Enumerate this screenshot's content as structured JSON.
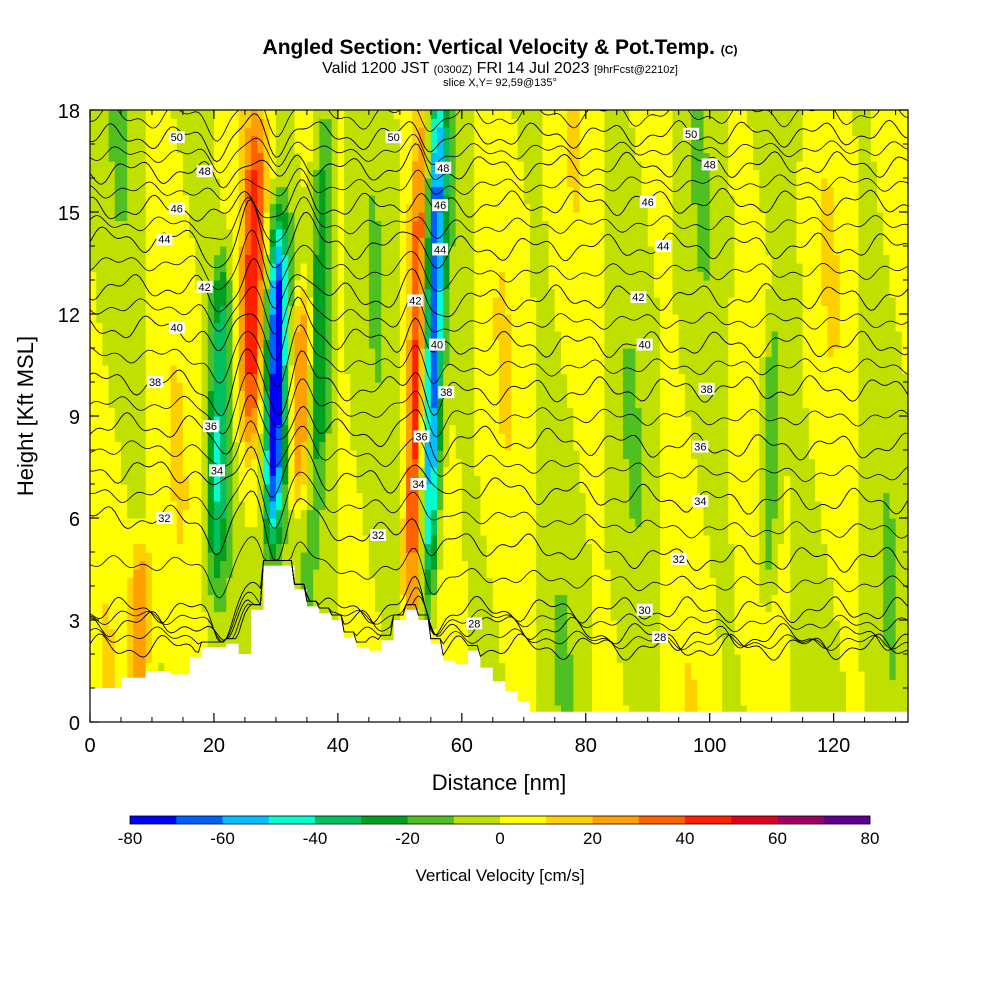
{
  "title": {
    "main": "Angled Section: Vertical Velocity & Pot.Temp.",
    "copyright": "(C)",
    "valid_prefix": "Valid 1200 JST",
    "valid_utc": "(0300Z)",
    "valid_date": "FRI 14 Jul 2023",
    "forecast": "[9hrFcst@2210z]",
    "slice": "slice X,Y= 92,59@135°"
  },
  "chart_data": {
    "type": "heatmap",
    "xlabel": "Distance [nm]",
    "ylabel": "Height [Kft MSL]",
    "xlim": [
      0,
      132
    ],
    "ylim": [
      0,
      18
    ],
    "x_ticks": [
      0,
      20,
      40,
      60,
      80,
      100,
      120
    ],
    "y_ticks": [
      0,
      3,
      6,
      9,
      12,
      15,
      18
    ],
    "colorbar": {
      "label": "Vertical Velocity [cm/s]",
      "tick_labels": [
        "-80",
        "-60",
        "-40",
        "-20",
        "0",
        "20",
        "40",
        "60",
        "80"
      ],
      "range": [
        -80,
        80
      ],
      "step": 10,
      "colors": [
        "#0000ff",
        "#0060ff",
        "#00c0ff",
        "#00ffd0",
        "#00c060",
        "#00a020",
        "#50c020",
        "#c0e000",
        "#ffff00",
        "#ffd000",
        "#ffa000",
        "#ff6000",
        "#ff2000",
        "#e00020",
        "#a00060",
        "#600090"
      ]
    },
    "background_value_range": [
      -10,
      10
    ],
    "features": [
      {
        "kind": "updraft",
        "x": 9,
        "z_range": [
          1.5,
          4.5
        ],
        "peak": 30
      },
      {
        "kind": "downdraft",
        "x": 21,
        "z_range": [
          5,
          13
        ],
        "peak": -40
      },
      {
        "kind": "updraft",
        "x": 26,
        "z_range": [
          9,
          17
        ],
        "peak": 40
      },
      {
        "kind": "downdraft",
        "x": 30,
        "z_range": [
          6,
          14
        ],
        "peak": -80
      },
      {
        "kind": "updraft",
        "x": 34,
        "z_range": [
          7,
          12
        ],
        "peak": 40
      },
      {
        "kind": "downdraft",
        "x": 37,
        "z_range": [
          8,
          18
        ],
        "peak": -30
      },
      {
        "kind": "updraft",
        "x": 53,
        "z_range": [
          3,
          18
        ],
        "peak": 50
      },
      {
        "kind": "downdraft",
        "x": 55,
        "z_range": [
          4,
          18
        ],
        "peak": -80
      },
      {
        "kind": "downdraft",
        "x": 110,
        "z_range": [
          4,
          11
        ],
        "peak": -25
      }
    ],
    "contour_labels": [
      {
        "x": 14,
        "z": 17.2,
        "text": "50"
      },
      {
        "x": 49,
        "z": 17.2,
        "text": "50"
      },
      {
        "x": 97,
        "z": 17.3,
        "text": "50"
      },
      {
        "x": 18.5,
        "z": 16.2,
        "text": "48"
      },
      {
        "x": 57,
        "z": 16.3,
        "text": "48"
      },
      {
        "x": 100,
        "z": 16.4,
        "text": "48"
      },
      {
        "x": 14,
        "z": 15.1,
        "text": "46"
      },
      {
        "x": 56.5,
        "z": 15.2,
        "text": "46"
      },
      {
        "x": 90,
        "z": 15.3,
        "text": "46"
      },
      {
        "x": 12,
        "z": 14.2,
        "text": "44"
      },
      {
        "x": 56.5,
        "z": 13.9,
        "text": "44"
      },
      {
        "x": 92.5,
        "z": 14.0,
        "text": "44"
      },
      {
        "x": 18.5,
        "z": 12.8,
        "text": "42"
      },
      {
        "x": 52.5,
        "z": 12.4,
        "text": "42"
      },
      {
        "x": 88.5,
        "z": 12.5,
        "text": "42"
      },
      {
        "x": 14,
        "z": 11.6,
        "text": "40"
      },
      {
        "x": 56,
        "z": 11.1,
        "text": "40"
      },
      {
        "x": 89.5,
        "z": 11.1,
        "text": "40"
      },
      {
        "x": 10.5,
        "z": 10.0,
        "text": "38"
      },
      {
        "x": 57.5,
        "z": 9.7,
        "text": "38"
      },
      {
        "x": 99.5,
        "z": 9.8,
        "text": "38"
      },
      {
        "x": 19.5,
        "z": 8.7,
        "text": "36"
      },
      {
        "x": 53.5,
        "z": 8.4,
        "text": "36"
      },
      {
        "x": 98.5,
        "z": 8.1,
        "text": "36"
      },
      {
        "x": 20.5,
        "z": 7.4,
        "text": "34"
      },
      {
        "x": 53,
        "z": 7.0,
        "text": "34"
      },
      {
        "x": 98.5,
        "z": 6.5,
        "text": "34"
      },
      {
        "x": 12,
        "z": 6.0,
        "text": "32"
      },
      {
        "x": 46.5,
        "z": 5.5,
        "text": "32"
      },
      {
        "x": 95,
        "z": 4.8,
        "text": "32"
      },
      {
        "x": 89.5,
        "z": 3.3,
        "text": "30"
      },
      {
        "x": 62,
        "z": 2.9,
        "text": "28"
      },
      {
        "x": 92,
        "z": 2.5,
        "text": "28"
      }
    ],
    "isentropes": [
      26,
      28,
      30,
      32,
      34,
      36,
      38,
      40,
      42,
      44,
      46,
      48,
      50
    ],
    "terrain_heights": [
      [
        0,
        1.0
      ],
      [
        5,
        1.3
      ],
      [
        9,
        1.5
      ],
      [
        13,
        1.4
      ],
      [
        16,
        1.9
      ],
      [
        18,
        2.2
      ],
      [
        22,
        2.3
      ],
      [
        24,
        2.0
      ],
      [
        26,
        3.3
      ],
      [
        28,
        4.6
      ],
      [
        31,
        4.6
      ],
      [
        33,
        3.9
      ],
      [
        35,
        3.4
      ],
      [
        37,
        3.2
      ],
      [
        39,
        3.0
      ],
      [
        41,
        2.5
      ],
      [
        43,
        2.2
      ],
      [
        45,
        2.1
      ],
      [
        47,
        2.4
      ],
      [
        49,
        3.0
      ],
      [
        51,
        3.3
      ],
      [
        53,
        3.0
      ],
      [
        55,
        2.3
      ],
      [
        57,
        1.8
      ],
      [
        59,
        1.7
      ],
      [
        61,
        2.1
      ],
      [
        63,
        1.6
      ],
      [
        65,
        1.2
      ],
      [
        67,
        0.9
      ],
      [
        69,
        0.6
      ],
      [
        71,
        0.3
      ],
      [
        132,
        0.3
      ]
    ]
  }
}
